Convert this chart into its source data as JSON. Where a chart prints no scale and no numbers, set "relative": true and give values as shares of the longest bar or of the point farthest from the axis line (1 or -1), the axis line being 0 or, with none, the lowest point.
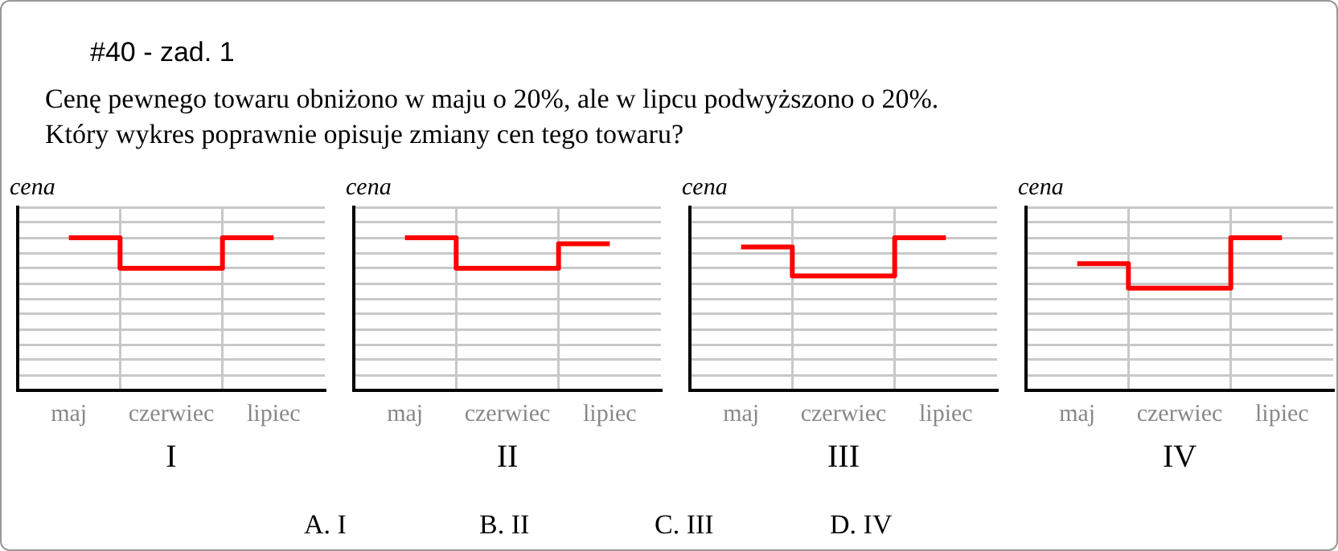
{
  "chart_data": [
    {
      "type": "other",
      "title": "#40 - zad. 1",
      "subtitle": "Cenę pewnego towaru obniżono w maju o 20%, ale w lipcu podwyższono o 20%.\nKtóry wykres poprawnie opisuje zmiany cen tego towaru?"
    },
    {
      "type": "step",
      "title": "I",
      "ylabel": "cena",
      "categories": [
        "maj",
        "czerwiec",
        "lipiec"
      ],
      "relative": true,
      "grid": true,
      "series": [
        {
          "color": "#ff0000",
          "values": [
            1,
            0.8,
            1
          ]
        }
      ]
    },
    {
      "type": "step",
      "title": "II",
      "ylabel": "cena",
      "categories": [
        "maj",
        "czerwiec",
        "lipiec"
      ],
      "relative": true,
      "grid": true,
      "series": [
        {
          "color": "#ff0000",
          "values": [
            1,
            0.8,
            0.96
          ]
        }
      ]
    },
    {
      "type": "step",
      "title": "III",
      "ylabel": "cena",
      "categories": [
        "maj",
        "czerwiec",
        "lipiec"
      ],
      "relative": true,
      "grid": true,
      "series": [
        {
          "color": "#ff0000",
          "values": [
            0.94,
            0.75,
            1
          ]
        }
      ]
    },
    {
      "type": "step",
      "title": "IV",
      "ylabel": "cena",
      "categories": [
        "maj",
        "czerwiec",
        "lipiec"
      ],
      "relative": true,
      "grid": true,
      "series": [
        {
          "color": "#ff0000",
          "values": [
            0.83,
            0.67,
            1
          ]
        }
      ]
    },
    {
      "type": "other",
      "annotations": [
        "A. I",
        "B. II",
        "C. III",
        "D. IV"
      ]
    }
  ]
}
